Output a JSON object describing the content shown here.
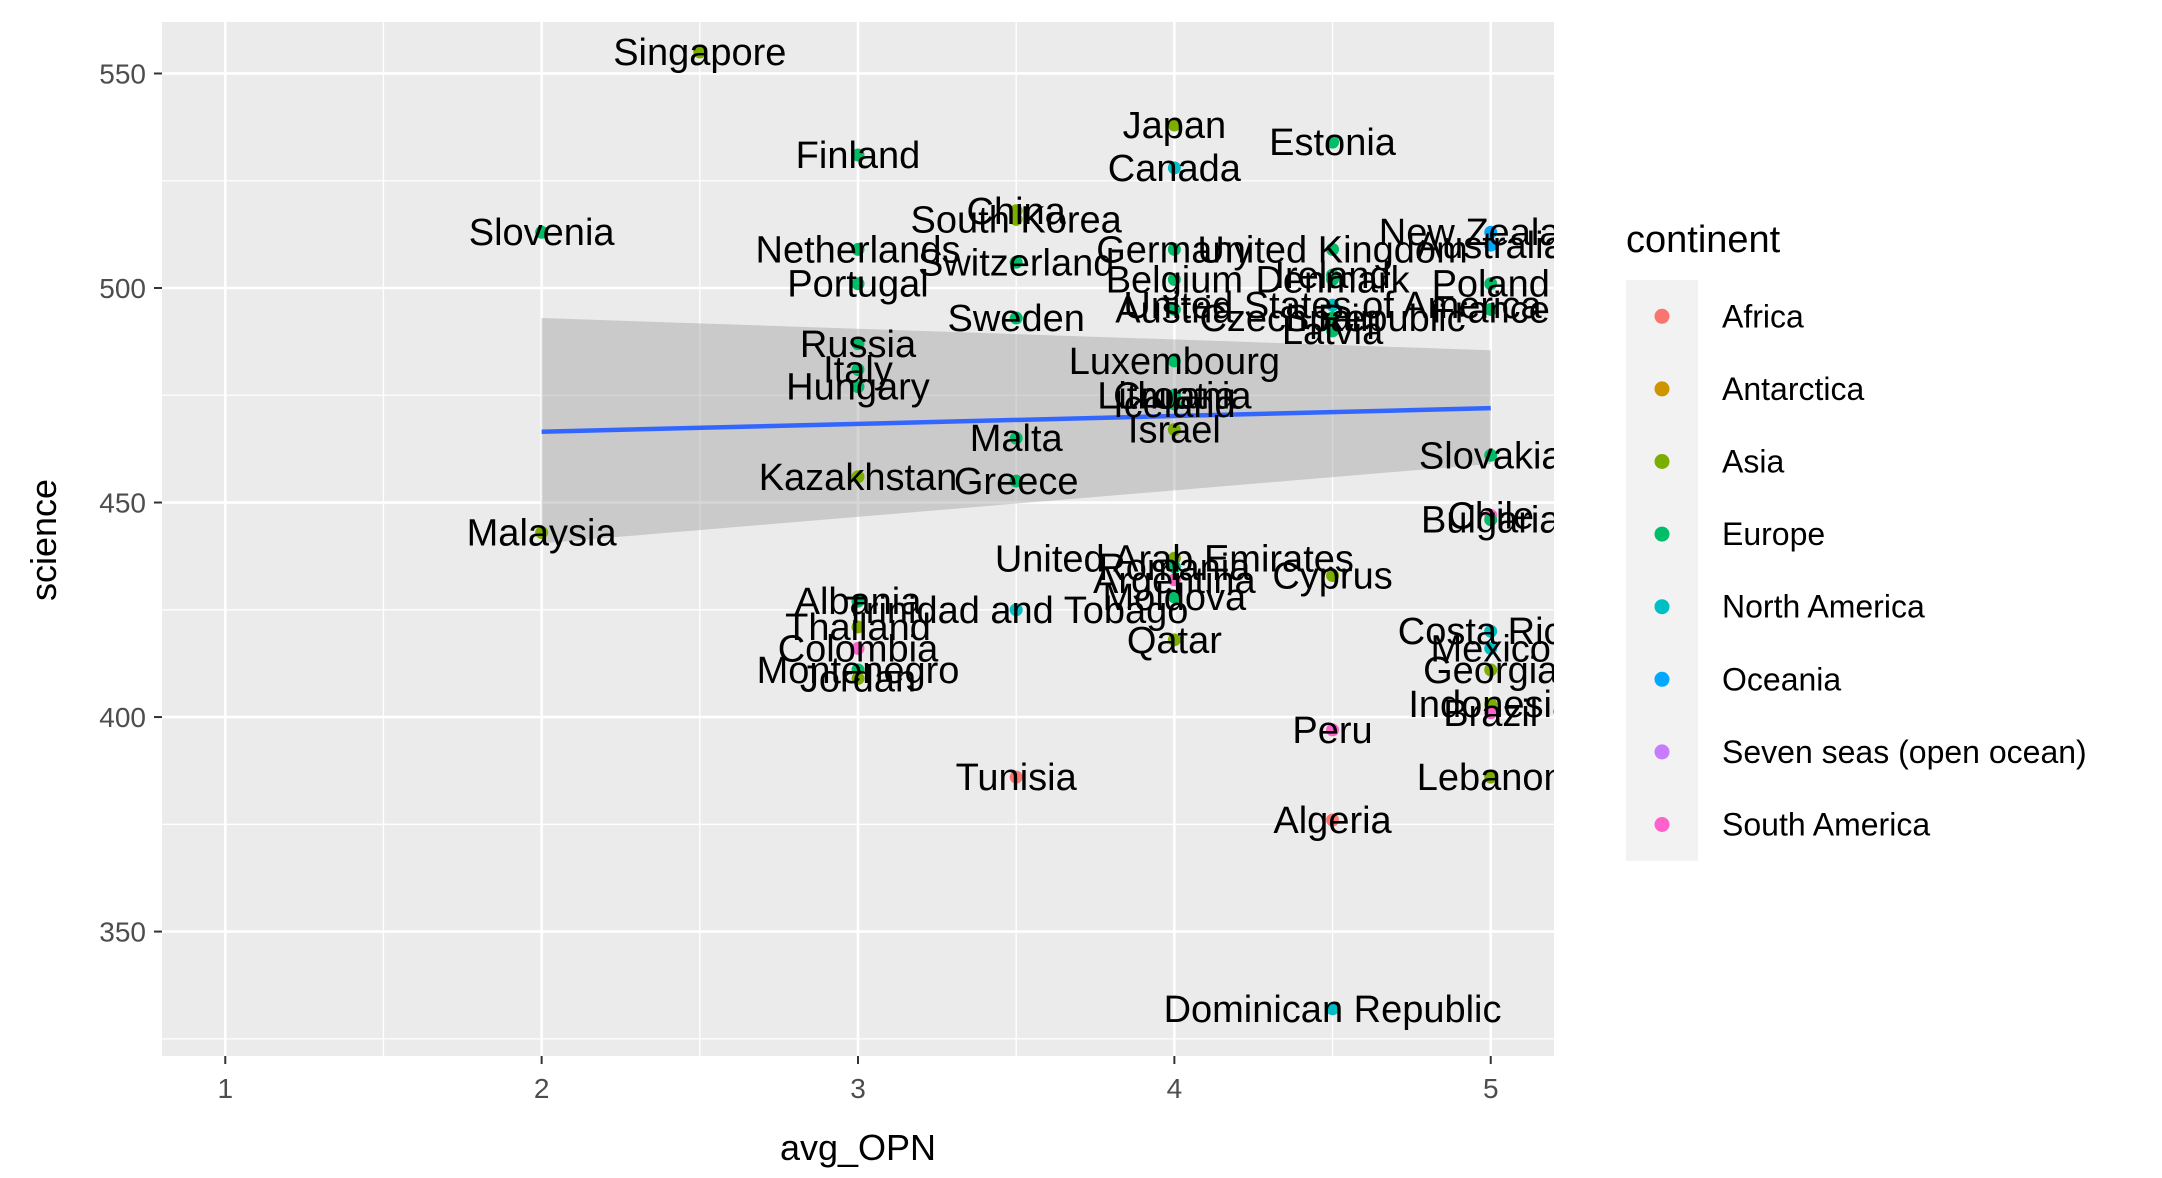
{
  "chart_data": {
    "type": "scatter",
    "xlabel": "avg_OPN",
    "ylabel": "science",
    "xlim": [
      0.8,
      5.2
    ],
    "ylim": [
      321,
      562
    ],
    "xticks": [
      1,
      2,
      3,
      4,
      5
    ],
    "yticks": [
      350,
      400,
      450,
      500,
      550
    ],
    "grid": true,
    "legend": {
      "title": "continent",
      "position": "right",
      "entries": [
        {
          "name": "Africa",
          "color": "#F8766D"
        },
        {
          "name": "Antarctica",
          "color": "#CD9600"
        },
        {
          "name": "Asia",
          "color": "#7CAE00"
        },
        {
          "name": "Europe",
          "color": "#00BE67"
        },
        {
          "name": "North America",
          "color": "#00BFC4"
        },
        {
          "name": "Oceania",
          "color": "#00A9FF"
        },
        {
          "name": "Seven seas (open ocean)",
          "color": "#C77CFF"
        },
        {
          "name": "South America",
          "color": "#FF61CC"
        }
      ]
    },
    "trend": {
      "method": "lm",
      "color": "#3366FF",
      "band_color": "#999999",
      "x": [
        2,
        5
      ],
      "y": [
        466.5,
        472
      ],
      "ci_low": [
        440.5,
        459
      ],
      "ci_high": [
        493,
        485.5
      ]
    },
    "points": [
      {
        "label": "Singapore",
        "x": 2.5,
        "y": 555,
        "continent": "Asia"
      },
      {
        "label": "Slovenia",
        "x": 2.0,
        "y": 513,
        "continent": "Europe"
      },
      {
        "label": "Malaysia",
        "x": 2.0,
        "y": 443,
        "continent": "Asia"
      },
      {
        "label": "Finland",
        "x": 3.0,
        "y": 531,
        "continent": "Europe"
      },
      {
        "label": "Netherlands",
        "x": 3.0,
        "y": 509,
        "continent": "Europe"
      },
      {
        "label": "Portugal",
        "x": 3.0,
        "y": 501,
        "continent": "Europe"
      },
      {
        "label": "Russia",
        "x": 3.0,
        "y": 487,
        "continent": "Europe"
      },
      {
        "label": "Italy",
        "x": 3.0,
        "y": 481,
        "continent": "Europe"
      },
      {
        "label": "Hungary",
        "x": 3.0,
        "y": 477,
        "continent": "Europe"
      },
      {
        "label": "Kazakhstan",
        "x": 3.0,
        "y": 456,
        "continent": "Asia"
      },
      {
        "label": "Albania",
        "x": 3.0,
        "y": 427,
        "continent": "Europe"
      },
      {
        "label": "Thailand",
        "x": 3.0,
        "y": 421,
        "continent": "Asia"
      },
      {
        "label": "Colombia",
        "x": 3.0,
        "y": 416,
        "continent": "South America"
      },
      {
        "label": "Montenegro",
        "x": 3.0,
        "y": 411,
        "continent": "Europe"
      },
      {
        "label": "Jordan",
        "x": 3.0,
        "y": 409,
        "continent": "Asia"
      },
      {
        "label": "South Korea",
        "x": 3.5,
        "y": 516,
        "continent": "Asia"
      },
      {
        "label": "China",
        "x": 3.5,
        "y": 518,
        "continent": "Asia"
      },
      {
        "label": "Switzerland",
        "x": 3.5,
        "y": 506,
        "continent": "Europe"
      },
      {
        "label": "Sweden",
        "x": 3.5,
        "y": 493,
        "continent": "Europe"
      },
      {
        "label": "Malta",
        "x": 3.5,
        "y": 465,
        "continent": "Europe"
      },
      {
        "label": "Greece",
        "x": 3.5,
        "y": 455,
        "continent": "Europe"
      },
      {
        "label": "Trinidad and Tobago",
        "x": 3.5,
        "y": 425,
        "continent": "North America"
      },
      {
        "label": "Tunisia",
        "x": 3.5,
        "y": 386,
        "continent": "Africa"
      },
      {
        "label": "Japan",
        "x": 4.0,
        "y": 538,
        "continent": "Asia"
      },
      {
        "label": "Canada",
        "x": 4.0,
        "y": 528,
        "continent": "North America"
      },
      {
        "label": "Germany",
        "x": 4.0,
        "y": 509,
        "continent": "Europe"
      },
      {
        "label": "Belgium",
        "x": 4.0,
        "y": 502,
        "continent": "Europe"
      },
      {
        "label": "Austria",
        "x": 4.0,
        "y": 495,
        "continent": "Europe"
      },
      {
        "label": "Luxembourg",
        "x": 4.0,
        "y": 483,
        "continent": "Europe"
      },
      {
        "label": "Lithuania",
        "x": 4.0,
        "y": 475,
        "continent": "Europe"
      },
      {
        "label": "Croatia",
        "x": 4.0,
        "y": 475,
        "continent": "Europe"
      },
      {
        "label": "Iceland",
        "x": 4.0,
        "y": 473,
        "continent": "Europe"
      },
      {
        "label": "Israel",
        "x": 4.0,
        "y": 467,
        "continent": "Asia"
      },
      {
        "label": "United Arab Emirates",
        "x": 4.0,
        "y": 437,
        "continent": "Asia"
      },
      {
        "label": "Romania",
        "x": 4.0,
        "y": 435,
        "continent": "Europe"
      },
      {
        "label": "Argentina",
        "x": 4.0,
        "y": 432,
        "continent": "South America"
      },
      {
        "label": "Moldova",
        "x": 4.0,
        "y": 428,
        "continent": "Europe"
      },
      {
        "label": "Qatar",
        "x": 4.0,
        "y": 418,
        "continent": "Asia"
      },
      {
        "label": "Estonia",
        "x": 4.5,
        "y": 534,
        "continent": "Europe"
      },
      {
        "label": "United Kingdom",
        "x": 4.5,
        "y": 509,
        "continent": "Europe"
      },
      {
        "label": "Ireland",
        "x": 4.5,
        "y": 503,
        "continent": "Europe"
      },
      {
        "label": "Denmark",
        "x": 4.5,
        "y": 502,
        "continent": "Europe"
      },
      {
        "label": "United States of America",
        "x": 4.5,
        "y": 496,
        "continent": "North America"
      },
      {
        "label": "Czech Republic",
        "x": 4.5,
        "y": 493,
        "continent": "Europe"
      },
      {
        "label": "Spain",
        "x": 4.5,
        "y": 493,
        "continent": "Europe"
      },
      {
        "label": "Latvia",
        "x": 4.5,
        "y": 490,
        "continent": "Europe"
      },
      {
        "label": "Cyprus",
        "x": 4.5,
        "y": 433,
        "continent": "Asia"
      },
      {
        "label": "Peru",
        "x": 4.5,
        "y": 397,
        "continent": "South America"
      },
      {
        "label": "Algeria",
        "x": 4.5,
        "y": 376,
        "continent": "Africa"
      },
      {
        "label": "Dominican Republic",
        "x": 4.5,
        "y": 332,
        "continent": "North America"
      },
      {
        "label": "New Zealand",
        "x": 5.0,
        "y": 513,
        "continent": "Oceania"
      },
      {
        "label": "Australia",
        "x": 5.0,
        "y": 510,
        "continent": "Oceania"
      },
      {
        "label": "France",
        "x": 5.0,
        "y": 495,
        "continent": "Europe"
      },
      {
        "label": "Poland",
        "x": 5.0,
        "y": 501,
        "continent": "Europe"
      },
      {
        "label": "Slovakia",
        "x": 5.0,
        "y": 461,
        "continent": "Europe"
      },
      {
        "label": "Chile",
        "x": 5.0,
        "y": 447,
        "continent": "South America"
      },
      {
        "label": "Bulgaria",
        "x": 5.0,
        "y": 446,
        "continent": "Europe"
      },
      {
        "label": "Costa Rica",
        "x": 5.0,
        "y": 420,
        "continent": "North America"
      },
      {
        "label": "Mexico",
        "x": 5.0,
        "y": 416,
        "continent": "North America"
      },
      {
        "label": "Georgia",
        "x": 5.0,
        "y": 411,
        "continent": "Asia"
      },
      {
        "label": "Indonesia",
        "x": 5.0,
        "y": 403,
        "continent": "Asia"
      },
      {
        "label": "Brazil",
        "x": 5.0,
        "y": 401,
        "continent": "South America"
      },
      {
        "label": "Lebanon",
        "x": 5.0,
        "y": 386,
        "continent": "Asia"
      }
    ]
  }
}
